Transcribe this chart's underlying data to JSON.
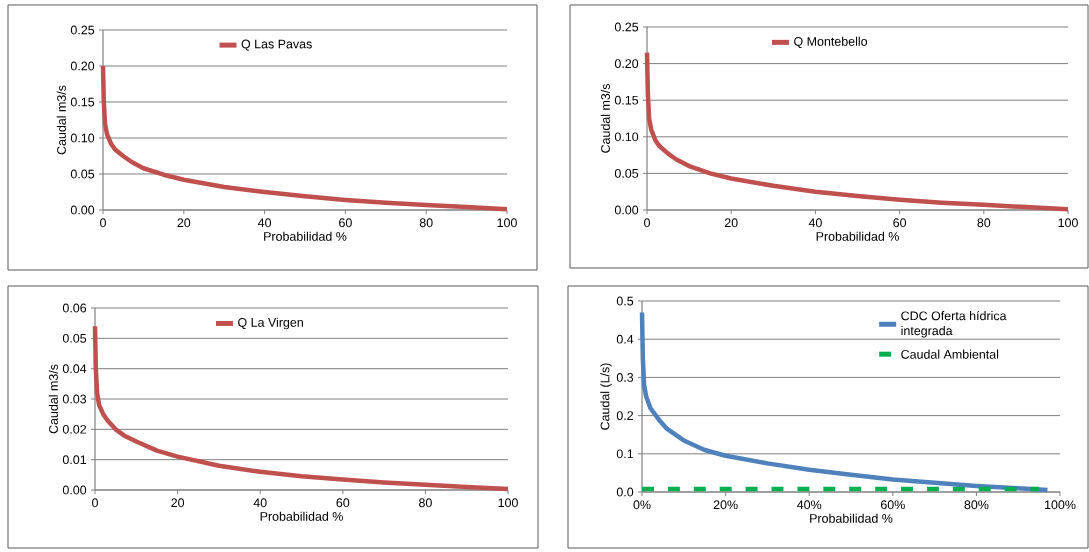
{
  "chart_data": [
    {
      "type": "line",
      "xlabel": "Probabilidad %",
      "ylabel": "Caudal m3/s",
      "grid": "y",
      "legend": "top",
      "marker": "none",
      "xlim": [
        0,
        100
      ],
      "xticks": [
        0,
        20,
        40,
        60,
        80,
        100
      ],
      "ylim": [
        0,
        0.25
      ],
      "yticks": [
        {
          "value": 0,
          "label": "0.00"
        },
        0.05,
        {
          "value": 0.1,
          "label": "0.10"
        },
        0.15,
        {
          "value": 0.2,
          "label": "0.20"
        },
        0.25
      ],
      "series": [
        {
          "name": "Q Las Pavas",
          "color": "#c0504d",
          "line_style": "solid",
          "x": [
            0,
            0.2,
            0.5,
            1,
            2,
            3,
            5,
            7,
            10,
            15,
            20,
            30,
            40,
            50,
            60,
            70,
            80,
            90,
            100
          ],
          "values": [
            0.2,
            0.15,
            0.12,
            0.105,
            0.092,
            0.084,
            0.075,
            0.067,
            0.058,
            0.049,
            0.042,
            0.032,
            0.025,
            0.019,
            0.014,
            0.01,
            0.007,
            0.004,
            0.001
          ]
        }
      ]
    },
    {
      "type": "line",
      "xlabel": "Probabilidad %",
      "ylabel": "Caudal m3/s",
      "grid": "y",
      "legend": "top",
      "marker": "none",
      "xlim": [
        0,
        100
      ],
      "xticks": [
        0,
        20,
        40,
        60,
        80,
        100
      ],
      "ylim": [
        0,
        0.25
      ],
      "yticks": [
        {
          "value": 0,
          "label": "0.00"
        },
        0.05,
        {
          "value": 0.1,
          "label": "0.10"
        },
        0.15,
        {
          "value": 0.2,
          "label": "0.20"
        },
        0.25
      ],
      "series": [
        {
          "name": "Q Montebello",
          "color": "#c0504d",
          "line_style": "solid",
          "x": [
            0,
            0.2,
            0.5,
            1,
            2,
            3,
            5,
            7,
            10,
            15,
            20,
            30,
            40,
            50,
            60,
            70,
            80,
            90,
            100
          ],
          "values": [
            0.215,
            0.16,
            0.125,
            0.11,
            0.095,
            0.087,
            0.077,
            0.069,
            0.06,
            0.05,
            0.043,
            0.033,
            0.025,
            0.019,
            0.014,
            0.01,
            0.007,
            0.004,
            0.001
          ]
        }
      ]
    },
    {
      "type": "line",
      "xlabel": "Probabilidad %",
      "ylabel": "Caudal m3/s",
      "grid": "y",
      "legend": "top",
      "marker": "none",
      "xlim": [
        0,
        100
      ],
      "xticks": [
        0,
        20,
        40,
        60,
        80,
        100
      ],
      "ylim": [
        0,
        0.06
      ],
      "yticks": [
        {
          "value": 0,
          "label": "0.00"
        },
        0.01,
        0.02,
        0.03,
        0.04,
        0.05,
        0.06
      ],
      "series": [
        {
          "name": "Q La Virgen",
          "color": "#c0504d",
          "line_style": "solid",
          "x": [
            0,
            0.2,
            0.5,
            1,
            2,
            3,
            5,
            7,
            10,
            15,
            20,
            30,
            40,
            50,
            60,
            70,
            80,
            90,
            100
          ],
          "values": [
            0.054,
            0.04,
            0.032,
            0.028,
            0.025,
            0.023,
            0.02,
            0.018,
            0.016,
            0.013,
            0.011,
            0.008,
            0.006,
            0.0045,
            0.0035,
            0.0025,
            0.0017,
            0.001,
            0.0003
          ]
        }
      ]
    },
    {
      "type": "line",
      "xlabel": "Probabilidad %",
      "ylabel": "Caudal (L/s)",
      "grid": "y",
      "legend": "top right",
      "marker": "none",
      "xlim": [
        0,
        100
      ],
      "xticks": [
        {
          "value": 0,
          "label": "0%"
        },
        {
          "value": 20,
          "label": "20%"
        },
        {
          "value": 40,
          "label": "40%"
        },
        {
          "value": 60,
          "label": "60%"
        },
        {
          "value": 80,
          "label": "80%"
        },
        {
          "value": 100,
          "label": "100%"
        }
      ],
      "ylim": [
        0,
        0.5
      ],
      "yticks": [
        {
          "value": 0,
          "label": "0.0"
        },
        0.1,
        0.2,
        0.3,
        0.4,
        0.5
      ],
      "series": [
        {
          "name": "CDC Oferta hídrica integrada",
          "color": "#4f81bd",
          "line_style": "solid",
          "x": [
            0,
            0.2,
            0.5,
            1,
            2,
            4,
            6,
            10,
            15,
            20,
            30,
            40,
            50,
            60,
            70,
            80,
            90,
            97
          ],
          "values": [
            0.47,
            0.35,
            0.28,
            0.25,
            0.22,
            0.19,
            0.165,
            0.135,
            0.11,
            0.095,
            0.075,
            0.058,
            0.045,
            0.033,
            0.024,
            0.016,
            0.01,
            0.005
          ]
        },
        {
          "name": "Caudal Ambiental",
          "color": "#00b050",
          "line_style": "dashed",
          "x": [
            0,
            95
          ],
          "values": [
            0.008,
            0.008
          ]
        }
      ]
    }
  ]
}
